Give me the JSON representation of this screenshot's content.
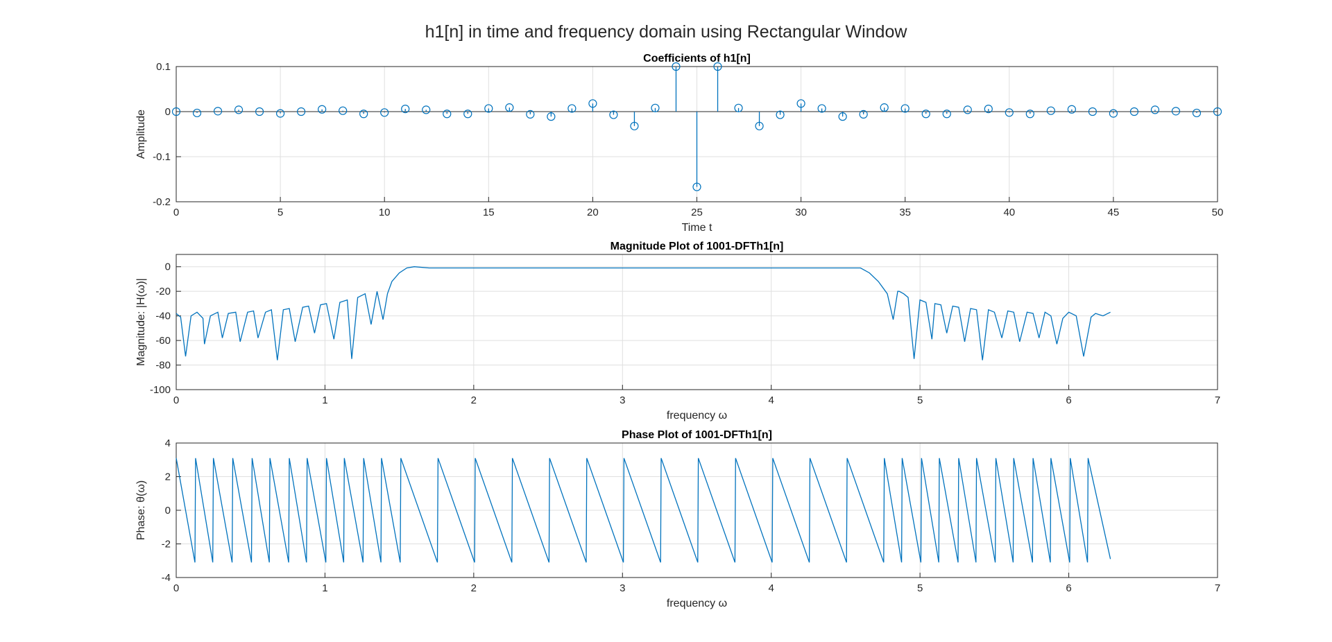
{
  "figure": {
    "title": "h1[n] in time and frequency domain using Rectangular Window"
  },
  "colors": {
    "series": "#0072BD",
    "axes": "#262626",
    "grid": "#dfdfdf"
  },
  "chart_data": [
    {
      "type": "stem",
      "title": "Coefficients of h1[n]",
      "xlabel": "Time t",
      "ylabel": "Amplitude",
      "xlim": [
        0,
        50
      ],
      "ylim": [
        -0.2,
        0.1
      ],
      "xticks": [
        "0",
        "5",
        "10",
        "15",
        "20",
        "25",
        "30",
        "35",
        "40",
        "45",
        "50"
      ],
      "yticks": [
        "0.1",
        "0",
        "-0.1",
        "-0.2"
      ],
      "grid": true,
      "x": [
        0,
        1,
        2,
        3,
        4,
        5,
        6,
        7,
        8,
        9,
        10,
        11,
        12,
        13,
        14,
        15,
        16,
        17,
        18,
        19,
        20,
        21,
        22,
        23,
        24,
        25,
        26,
        27,
        28,
        29,
        30,
        31,
        32,
        33,
        34,
        35,
        36,
        37,
        38,
        39,
        40,
        41,
        42,
        43,
        44,
        45,
        46,
        47,
        48,
        49,
        50
      ],
      "y": [
        0,
        -0.003,
        0.001,
        0.004,
        0,
        -0.004,
        0,
        0.005,
        0.002,
        -0.005,
        -0.002,
        0.006,
        0.004,
        -0.005,
        -0.005,
        0.007,
        0.009,
        -0.006,
        -0.011,
        0.007,
        0.018,
        -0.007,
        -0.032,
        0.008,
        0.1,
        -0.167,
        0.1,
        0.008,
        -0.032,
        -0.007,
        0.018,
        0.007,
        -0.011,
        -0.006,
        0.009,
        0.007,
        -0.005,
        -0.005,
        0.004,
        0.006,
        -0.002,
        -0.005,
        0.002,
        0.005,
        0,
        -0.004,
        0,
        0.004,
        0.001,
        -0.003,
        0
      ]
    },
    {
      "type": "line",
      "title": "Magnitude Plot of 1001-DFTh1[n]",
      "xlabel": "frequency ω",
      "ylabel": "Magnitude: |H(ω)|",
      "xlim": [
        0,
        7
      ],
      "ylim": [
        -100,
        10
      ],
      "xticks": [
        "0",
        "1",
        "2",
        "3",
        "4",
        "5",
        "6",
        "7"
      ],
      "yticks": [
        "0",
        "-20",
        "-40",
        "-60",
        "-80",
        "-100"
      ],
      "grid": true,
      "series": [
        {
          "x": [
            0,
            0.03,
            0.063,
            0.1,
            0.14,
            0.18,
            0.19,
            0.23,
            0.28,
            0.31,
            0.35,
            0.4,
            0.43,
            0.48,
            0.52,
            0.55,
            0.6,
            0.64,
            0.68,
            0.72,
            0.76,
            0.8,
            0.85,
            0.89,
            0.93,
            0.97,
            1.01,
            1.06,
            1.1,
            1.15,
            1.18,
            1.22,
            1.27,
            1.31,
            1.35,
            1.39,
            1.42,
            1.45,
            1.5,
            1.55,
            1.6,
            1.7,
            2.0,
            2.5,
            3.0,
            3.14,
            3.5,
            4.0,
            4.5,
            4.6,
            4.66,
            4.72,
            4.78,
            4.82,
            4.85,
            4.86,
            4.89,
            4.92,
            4.96,
            5.0,
            5.04,
            5.08,
            5.1,
            5.14,
            5.18,
            5.22,
            5.26,
            5.3,
            5.34,
            5.38,
            5.42,
            5.46,
            5.5,
            5.55,
            5.59,
            5.63,
            5.67,
            5.72,
            5.76,
            5.8,
            5.84,
            5.88,
            5.92,
            5.96,
            6.0,
            6.05,
            6.1,
            6.15,
            6.18,
            6.23,
            6.28
          ],
          "y": [
            -38,
            -41,
            -73,
            -40,
            -37,
            -42,
            -63,
            -40,
            -37,
            -58,
            -38,
            -37,
            -61,
            -37,
            -36,
            -58,
            -37,
            -35,
            -76,
            -35,
            -34,
            -61,
            -33,
            -32,
            -54,
            -31,
            -30,
            -59,
            -29,
            -27,
            -75,
            -25,
            -22,
            -47,
            -20,
            -43,
            -22,
            -12,
            -5,
            -1,
            0,
            -1,
            -1,
            -1,
            -1,
            -1,
            -1,
            -1,
            -1,
            -1,
            -5,
            -12,
            -22,
            -43,
            -20,
            -20,
            -22,
            -25,
            -75,
            -27,
            -29,
            -59,
            -30,
            -31,
            -54,
            -32,
            -33,
            -61,
            -34,
            -35,
            -76,
            -35,
            -37,
            -58,
            -36,
            -37,
            -61,
            -37,
            -38,
            -58,
            -37,
            -40,
            -63,
            -42,
            -37,
            -40,
            -73,
            -41,
            -38,
            -40,
            -37
          ]
        }
      ]
    },
    {
      "type": "line",
      "title": "Phase Plot of 1001-DFTh1[n]",
      "xlabel": "frequency ω",
      "ylabel": "Phase: θ(ω)",
      "xlim": [
        0,
        7
      ],
      "ylim": [
        -4,
        4
      ],
      "xticks": [
        "0",
        "1",
        "2",
        "3",
        "4",
        "5",
        "6",
        "7"
      ],
      "yticks": [
        "4",
        "2",
        "0",
        "-2",
        "-4"
      ],
      "grid": true,
      "sawtooth": {
        "ymax": 3.1,
        "ymin": -3.1,
        "teeth_start": [
          0,
          0.13,
          0.25,
          0.38,
          0.51,
          0.63,
          0.76,
          0.88,
          1.01,
          1.13,
          1.26,
          1.38,
          1.51,
          1.76,
          2.01,
          2.26,
          2.51,
          2.76,
          3.01,
          3.26,
          3.51,
          3.76,
          4.01,
          4.26,
          4.51,
          4.76,
          4.88,
          5.01,
          5.13,
          5.26,
          5.38,
          5.51,
          5.63,
          5.76,
          5.88,
          6.01,
          6.13
        ],
        "end_x": 6.28,
        "end_y": -2.9
      }
    }
  ]
}
